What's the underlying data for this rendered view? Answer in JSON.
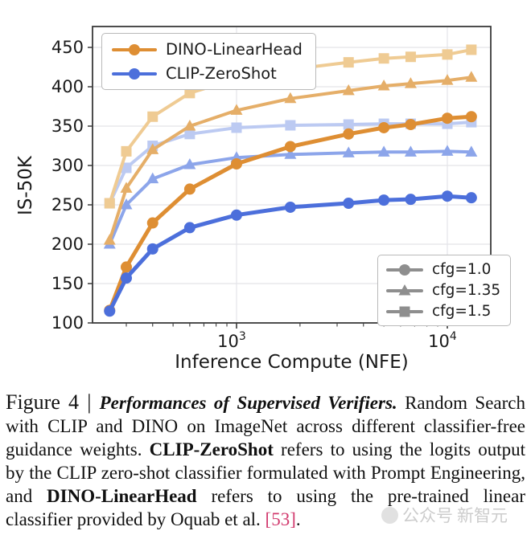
{
  "chart_data": {
    "type": "line",
    "xlabel": "Inference Compute (NFE)",
    "ylabel": "IS-50K",
    "x_scale": "log",
    "xlim": [
      207,
      16000
    ],
    "ylim": [
      100,
      476
    ],
    "grid": true,
    "y_ticks": [
      100,
      150,
      200,
      250,
      300,
      350,
      400,
      450
    ],
    "x_major_ticks": [
      {
        "value": 1000,
        "base": "10",
        "exp": "3"
      },
      {
        "value": 10000,
        "base": "10",
        "exp": "4"
      }
    ],
    "x": [
      250,
      300,
      400,
      600,
      1000,
      1800,
      3400,
      5000,
      6700,
      10000,
      13000
    ],
    "series": [
      {
        "name": "CLIP-ZeroShot cfg=1.5",
        "model": "CLIP-ZeroShot",
        "cfg": "1.5",
        "marker": "square",
        "color": "#BCCAF2",
        "width": 4,
        "values": [
          252,
          297,
          325,
          340,
          348,
          351,
          352,
          353,
          353,
          353,
          355
        ]
      },
      {
        "name": "DINO-LinearHead cfg=1.5",
        "model": "DINO-LinearHead",
        "cfg": "1.5",
        "marker": "square",
        "color": "#EFCB93",
        "width": 4,
        "values": [
          252,
          318,
          362,
          392,
          410,
          422,
          431,
          436,
          438,
          441,
          447
        ]
      },
      {
        "name": "CLIP-ZeroShot cfg=1.35",
        "model": "CLIP-ZeroShot",
        "cfg": "1.35",
        "marker": "triangle",
        "color": "#8CA5EA",
        "width": 4,
        "values": [
          200,
          250,
          283,
          301,
          310,
          314,
          316,
          317,
          317,
          318,
          317
        ]
      },
      {
        "name": "DINO-LinearHead cfg=1.35",
        "model": "DINO-LinearHead",
        "cfg": "1.35",
        "marker": "triangle",
        "color": "#E5AE68",
        "width": 4,
        "values": [
          205,
          271,
          320,
          350,
          370,
          385,
          395,
          401,
          404,
          408,
          412
        ]
      },
      {
        "name": "DINO-LinearHead cfg=1.0",
        "model": "DINO-LinearHead",
        "cfg": "1.0",
        "marker": "circle",
        "color": "#DE8E33",
        "width": 5,
        "values": [
          116,
          171,
          227,
          270,
          302,
          324,
          340,
          348,
          352,
          360,
          362
        ]
      },
      {
        "name": "CLIP-ZeroShot cfg=1.0",
        "model": "CLIP-ZeroShot",
        "cfg": "1.0",
        "marker": "circle",
        "color": "#4C6FDB",
        "width": 5,
        "values": [
          115,
          157,
          194,
          221,
          237,
          247,
          252,
          256,
          257,
          261,
          259
        ]
      }
    ],
    "legend_models": [
      {
        "label": "DINO-LinearHead",
        "color": "#DE8E33",
        "marker": "circle"
      },
      {
        "label": "CLIP-ZeroShot",
        "color": "#4C6FDB",
        "marker": "circle"
      }
    ],
    "legend_cfg": {
      "color": "#8E8E8E",
      "items": [
        {
          "label": "cfg=1.0",
          "marker": "circle"
        },
        {
          "label": "cfg=1.35",
          "marker": "triangle"
        },
        {
          "label": "cfg=1.5",
          "marker": "square"
        }
      ]
    },
    "colors": {
      "grid": "#e4e4e8",
      "spine": "#3a3a3a",
      "tick": "#3a3a3a",
      "text": "#1a1a1a"
    }
  },
  "caption": {
    "segments": [
      {
        "t": "Figure 4 | ",
        "s": "fig"
      },
      {
        "t": "Performances of Supervised Verifiers.",
        "s": "bi"
      },
      {
        "t": " Random Search with CLIP and DINO on ImageNet across different classifier-free guidance weights. ",
        "s": "r"
      },
      {
        "t": "CLIP-ZeroShot",
        "s": "b"
      },
      {
        "t": " refers to using the logits output by the CLIP zero-shot classifier formulated with Prompt Engineering, and ",
        "s": "r"
      },
      {
        "t": "DINO-LinearHead",
        "s": "b"
      },
      {
        "t": " refers to using the pre-trained linear classifier provided by Oquab et al. ",
        "s": "r"
      },
      {
        "t": "[53]",
        "s": "cite"
      },
      {
        "t": ".",
        "s": "r"
      }
    ]
  },
  "watermark": {
    "text1": "公众号",
    "text2": "新智元"
  }
}
